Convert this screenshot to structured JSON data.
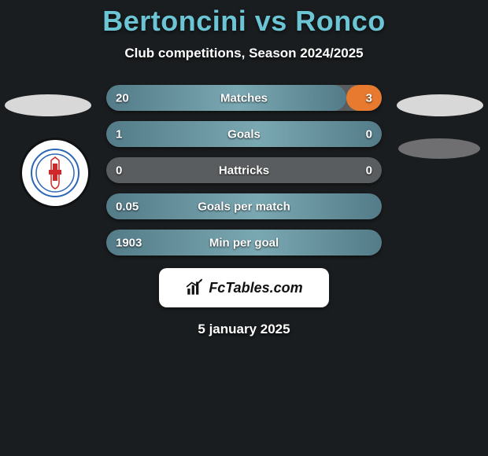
{
  "title": "Bertoncini vs Ronco",
  "subtitle": "Club competitions, Season 2024/2025",
  "date": "5 january 2025",
  "brand": "FcTables.com",
  "colors": {
    "title_color": "#6cc5d4",
    "bar_bg": "#5a5d5f",
    "left_color": "#537b88",
    "left_accent": "#7aa8b2",
    "right_color": "#e77a2f"
  },
  "bars": [
    {
      "label": "Matches",
      "left": "20",
      "right": "3",
      "left_pct": 87,
      "right_pct": 13
    },
    {
      "label": "Goals",
      "left": "1",
      "right": "0",
      "left_pct": 100,
      "right_pct": 0
    },
    {
      "label": "Hattricks",
      "left": "0",
      "right": "0",
      "left_pct": 0,
      "right_pct": 0
    },
    {
      "label": "Goals per match",
      "left": "0.05",
      "right": "",
      "left_pct": 100,
      "right_pct": 0
    },
    {
      "label": "Min per goal",
      "left": "1903",
      "right": "",
      "left_pct": 100,
      "right_pct": 0
    }
  ]
}
